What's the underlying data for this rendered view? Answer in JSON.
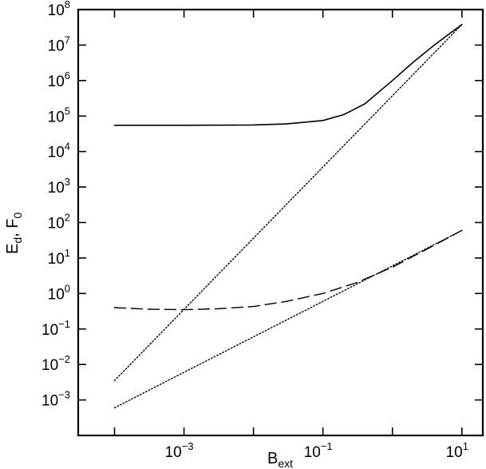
{
  "chart_data": {
    "type": "line",
    "xlabel": "B",
    "xlabel_sub": "ext",
    "ylabel": "E",
    "ylabel_sub": "d",
    "ylabel_sep": ", ",
    "ylabel2": "F",
    "ylabel2_sub": "0",
    "x_scale": "log",
    "y_scale": "log",
    "xlim": [
      3e-05,
      20
    ],
    "ylim": [
      0.0001,
      100000000
    ],
    "grid": false,
    "legend": "none",
    "x_tick_labels": [
      {
        "base": "10",
        "exp": "−3",
        "value": 0.001
      },
      {
        "base": "10",
        "exp": "−1",
        "value": 0.1
      },
      {
        "base": "10",
        "exp": "1",
        "value": 10
      }
    ],
    "x_minor_ticks": [
      0.0001,
      0.01,
      1
    ],
    "y_tick_labels": [
      {
        "base": "10",
        "exp": "−3",
        "value": 0.001
      },
      {
        "base": "10",
        "exp": "−2",
        "value": 0.01
      },
      {
        "base": "10",
        "exp": "−1",
        "value": 0.1
      },
      {
        "base": "10",
        "exp": "0",
        "value": 1
      },
      {
        "base": "10",
        "exp": "1",
        "value": 10
      },
      {
        "base": "10",
        "exp": "2",
        "value": 100
      },
      {
        "base": "10",
        "exp": "3",
        "value": 1000
      },
      {
        "base": "10",
        "exp": "4",
        "value": 10000
      },
      {
        "base": "10",
        "exp": "5",
        "value": 100000
      },
      {
        "base": "10",
        "exp": "6",
        "value": 1000000
      },
      {
        "base": "10",
        "exp": "7",
        "value": 10000000
      },
      {
        "base": "10",
        "exp": "8",
        "value": 100000000
      }
    ],
    "series": [
      {
        "style": "solid",
        "color": "#000000",
        "x": [
          0.0001,
          0.001,
          0.01,
          0.03,
          0.1,
          0.2,
          0.4,
          1,
          2,
          4,
          10
        ],
        "y": [
          55000,
          55000,
          56000,
          60000,
          75000,
          110000,
          220000,
          1000000,
          3300000,
          10000000,
          38000000
        ]
      },
      {
        "style": "dotted",
        "color": "#000000",
        "x": [
          0.0001,
          10
        ],
        "y": [
          0.0035,
          38000000
        ]
      },
      {
        "style": "dashed",
        "color": "#000000",
        "x": [
          0.0001,
          0.0003,
          0.001,
          0.003,
          0.01,
          0.03,
          0.1,
          0.3,
          1,
          3,
          10
        ],
        "y": [
          0.4,
          0.36,
          0.35,
          0.37,
          0.43,
          0.6,
          1.0,
          2.0,
          5.5,
          17,
          60
        ]
      },
      {
        "style": "dotted",
        "color": "#000000",
        "x": [
          0.0001,
          10
        ],
        "y": [
          0.0006,
          60
        ]
      }
    ]
  }
}
